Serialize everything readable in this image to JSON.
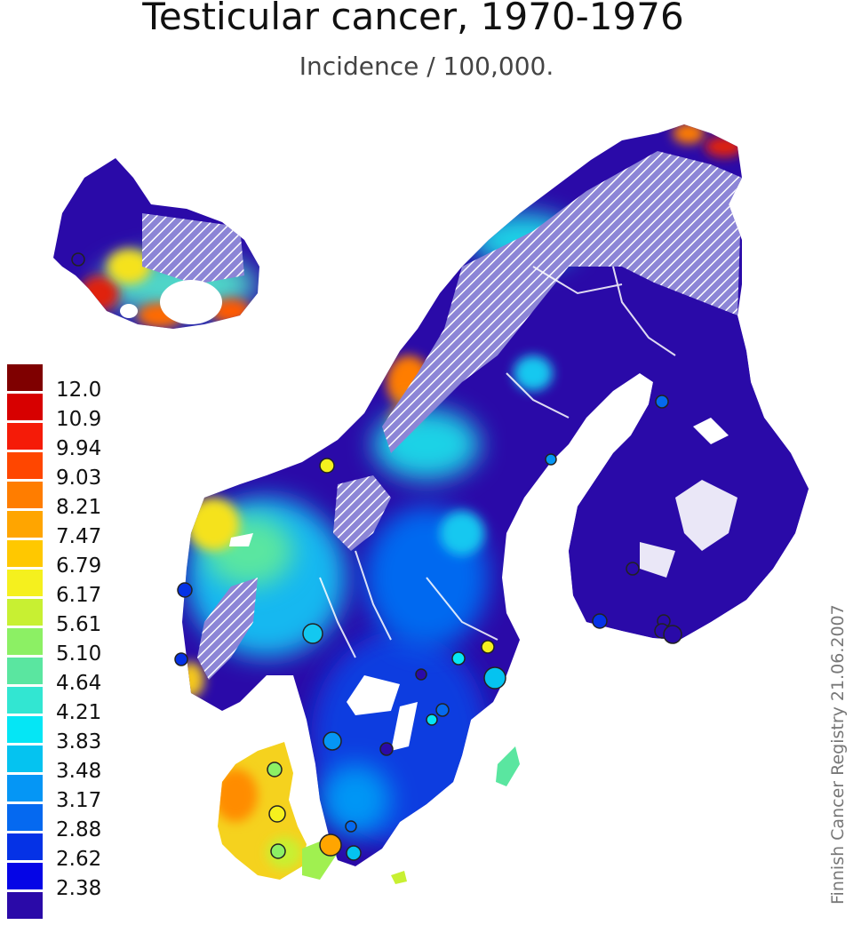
{
  "title": "Testicular cancer, 1970-1976",
  "subtitle": "Incidence / 100,000.",
  "credit": "Finnish Cancer Registry 21.06.2007",
  "legend": {
    "labels": [
      "12.0",
      "10.9",
      "9.94",
      "9.03",
      "8.21",
      "7.47",
      "6.79",
      "6.17",
      "5.61",
      "5.10",
      "4.64",
      "4.21",
      "3.83",
      "3.48",
      "3.17",
      "2.88",
      "2.62",
      "2.38"
    ],
    "colors": [
      "#7f0000",
      "#d70000",
      "#f51b08",
      "#ff4600",
      "#ff7d00",
      "#ffa500",
      "#ffc800",
      "#f5f01e",
      "#c8f032",
      "#8cf064",
      "#5ae6a0",
      "#32e6d2",
      "#05e6f5",
      "#05c3f0",
      "#0596f5",
      "#0569f0",
      "#0532e6",
      "#0505e6",
      "#2a0aa8"
    ]
  },
  "map": {
    "regions": [
      "Iceland",
      "Norway",
      "Sweden",
      "Finland",
      "Denmark"
    ],
    "base_color": "#2a0aa8",
    "no_data_hatch_color": "#8c85d6"
  }
}
